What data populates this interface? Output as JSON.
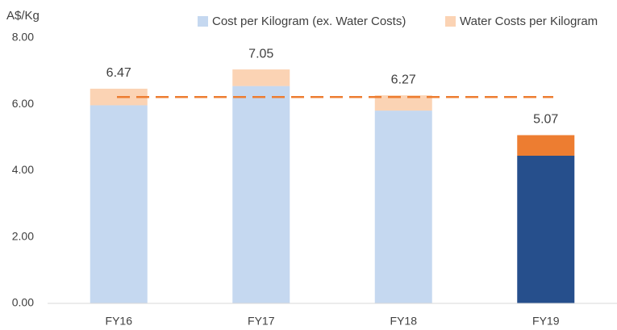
{
  "chart_data": {
    "type": "stacked_bar",
    "y_label": "A$/Kg",
    "categories": [
      "FY16",
      "FY17",
      "FY18",
      "FY19"
    ],
    "series": [
      {
        "name": "Cost per Kilogram (ex. Water Costs)",
        "color": "#c5d8f0",
        "colors": [
          "#c5d8f0",
          "#c5d8f0",
          "#c5d8f0",
          "#264f8c"
        ],
        "values": [
          5.97,
          6.55,
          5.81,
          4.45
        ]
      },
      {
        "name": "Water Costs per Kilogram",
        "color": "#fbd3b4",
        "colors": [
          "#fbd3b4",
          "#fbd3b4",
          "#fbd3b4",
          "#ed7d31"
        ],
        "values": [
          0.5,
          0.5,
          0.46,
          0.62
        ]
      }
    ],
    "totals": [
      6.47,
      7.05,
      6.27,
      5.07
    ],
    "reference_line": 6.22,
    "reference_color": "#ed7d31",
    "ylim": [
      0,
      8
    ],
    "yticks": [
      {
        "value": 0,
        "label": "0.00"
      },
      {
        "value": 2,
        "label": "2.00"
      },
      {
        "value": 4,
        "label": "4.00"
      },
      {
        "value": 6,
        "label": "6.00"
      },
      {
        "value": 8,
        "label": "8.00"
      }
    ],
    "grid": false
  }
}
